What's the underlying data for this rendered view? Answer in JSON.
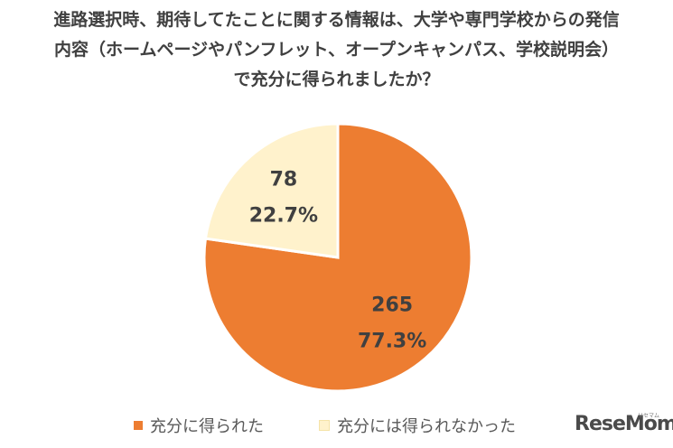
{
  "chart_data": {
    "type": "pie",
    "title_lines": [
      "進路選択時、期待してたことに関する情報は、大学や専門学校からの発信",
      "内容（ホームページやパンフレット、オープンキャンパス、学校説明会）",
      "で充分に得られましたか？"
    ],
    "slices": [
      {
        "name": "充分に得られた",
        "value": 265,
        "percent_label": "77.3%",
        "color": "#ED7D31"
      },
      {
        "name": "充分には得られなかった",
        "value": 78,
        "percent_label": "22.7%",
        "color": "#FFF2CC"
      }
    ],
    "legend_position": "bottom"
  },
  "branding": {
    "logo_text": "ReseMom",
    "logo_sub": "リセマム"
  }
}
